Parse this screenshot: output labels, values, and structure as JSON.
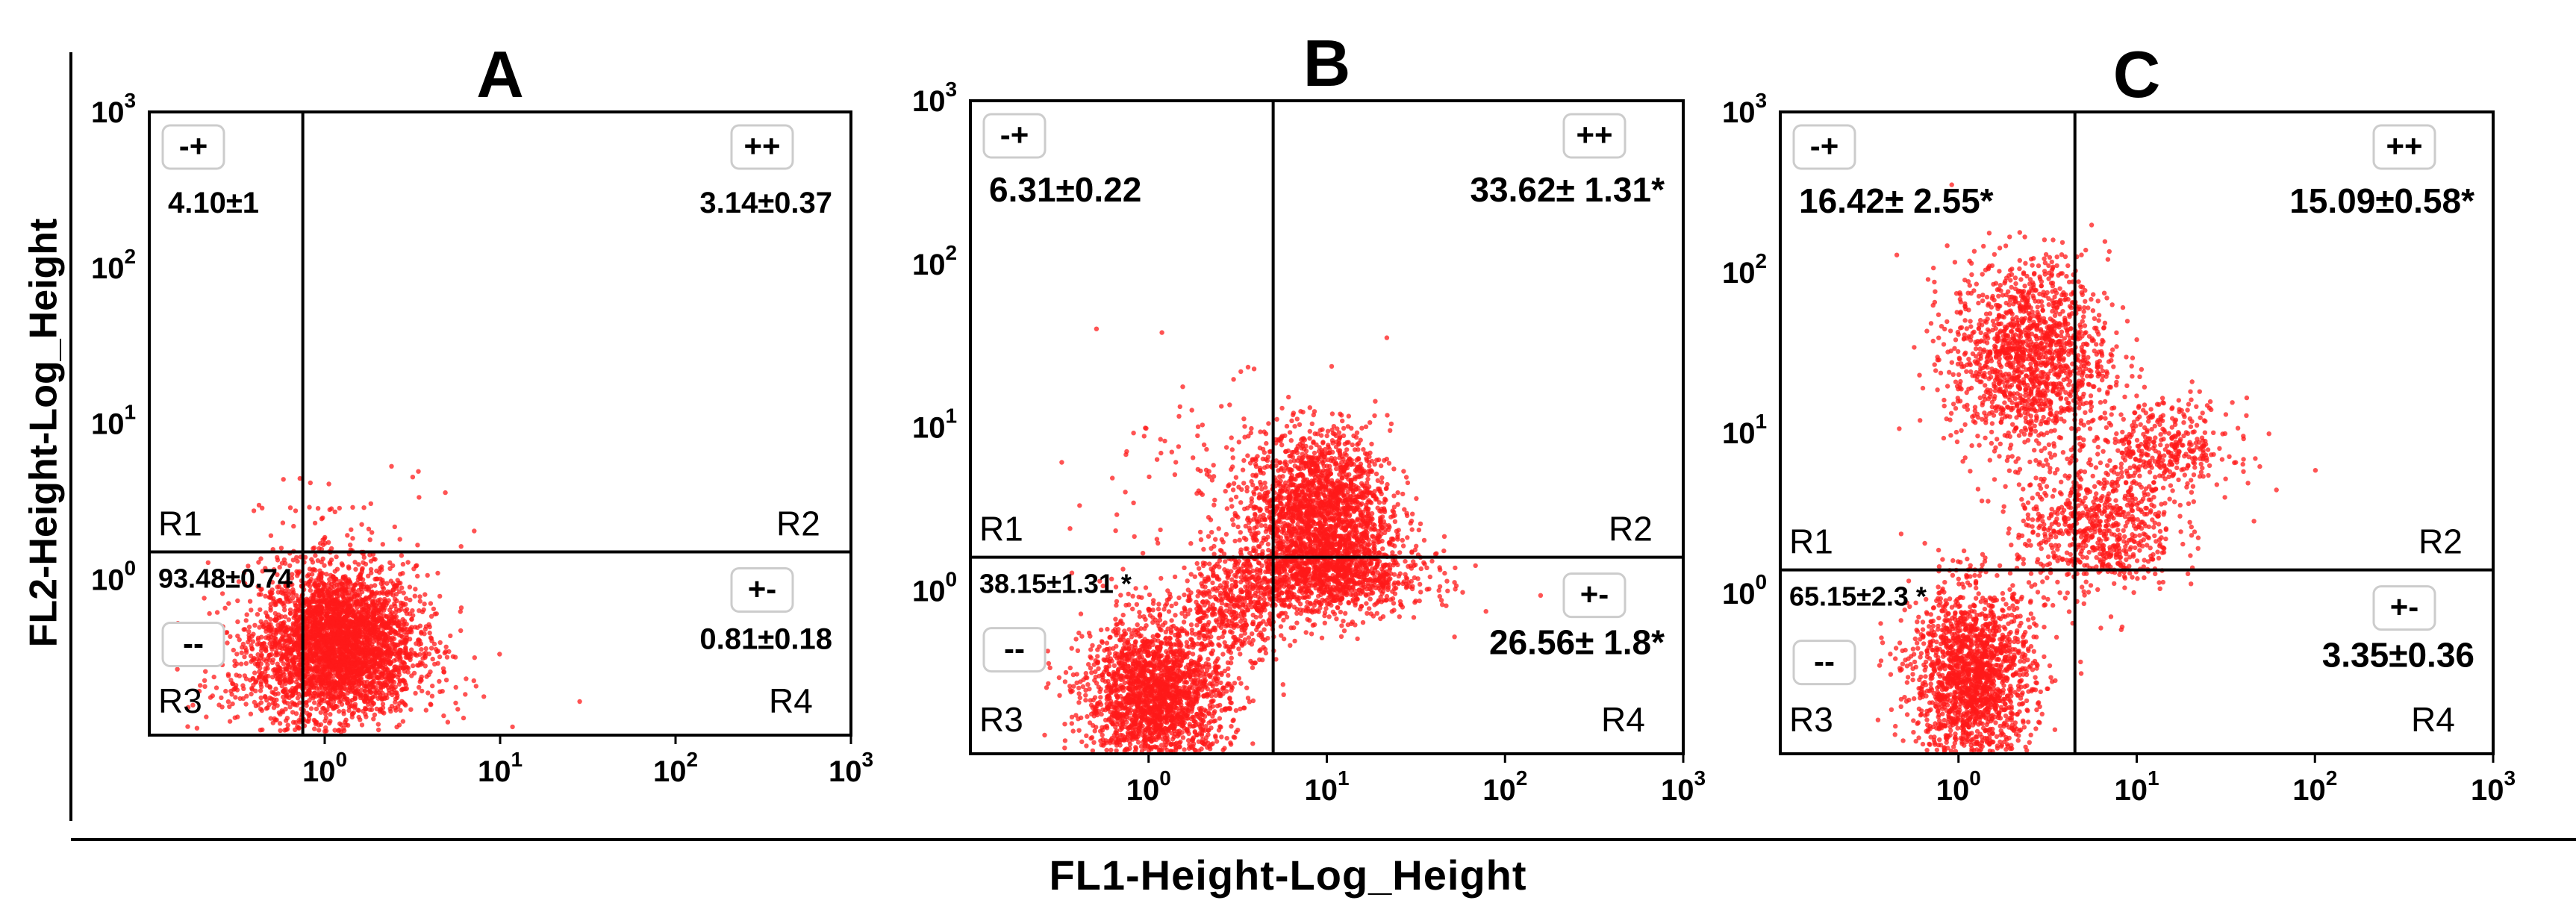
{
  "figure": {
    "ylabel": "FL2-Height-Log_Height",
    "xlabel": "FL1-Height-Log_Height"
  },
  "colors": {
    "dots": "#ff1a1a",
    "axes": "#000000"
  },
  "chart_data": [
    {
      "type": "scatter",
      "title": "A",
      "xscale": "log",
      "yscale": "log",
      "xlim": [
        0.1,
        1000
      ],
      "ylim": [
        0.1,
        1000
      ],
      "x_ticks": [
        "10^0",
        "10^1",
        "10^2",
        "10^3"
      ],
      "y_ticks": [
        "10^0",
        "10^1",
        "10^2",
        "10^3"
      ],
      "gate": {
        "x": 0.75,
        "y": 1.5
      },
      "regions": [
        "R1",
        "R2",
        "R3",
        "R4"
      ],
      "quadrants": [
        {
          "region": "R1",
          "sign": "-+",
          "value": "4.10±1"
        },
        {
          "region": "R2",
          "sign": "++",
          "value": "3.14±0.37"
        },
        {
          "region": "R3",
          "sign": "--",
          "value": "93.48±0.74"
        },
        {
          "region": "R4",
          "sign": "+-",
          "value": "0.81±0.18"
        }
      ],
      "clusters": [
        {
          "x": 1.2,
          "y": 0.4,
          "sx": 0.22,
          "sy": 0.24,
          "n": 3000
        },
        {
          "x": 0.9,
          "y": 0.25,
          "sx": 0.35,
          "sy": 0.2,
          "n": 600
        },
        {
          "x": 1.5,
          "y": 2.0,
          "sx": 0.35,
          "sy": 0.2,
          "n": 60
        }
      ]
    },
    {
      "type": "scatter",
      "title": "B",
      "xscale": "log",
      "yscale": "log",
      "xlim": [
        0.1,
        1000
      ],
      "ylim": [
        0.1,
        1000
      ],
      "x_ticks": [
        "10^0",
        "10^1",
        "10^2",
        "10^3"
      ],
      "y_ticks": [
        "10^0",
        "10^1",
        "10^2",
        "10^3"
      ],
      "gate": {
        "x": 5,
        "y": 1.6
      },
      "regions": [
        "R1",
        "R2",
        "R3",
        "R4"
      ],
      "quadrants": [
        {
          "region": "R1",
          "sign": "-+",
          "value": "6.31±0.22"
        },
        {
          "region": "R2",
          "sign": "++",
          "value": "33.62± 1.31*"
        },
        {
          "region": "R3",
          "sign": "--",
          "value": "38.15±1.31 *"
        },
        {
          "region": "R4",
          "sign": "+-",
          "value": "26.56± 1.8*"
        }
      ],
      "clusters": [
        {
          "x": 1.1,
          "y": 0.22,
          "sx": 0.2,
          "sy": 0.24,
          "n": 2200
        },
        {
          "x": 9,
          "y": 3.0,
          "sx": 0.2,
          "sy": 0.25,
          "n": 2000
        },
        {
          "x": 10,
          "y": 1.2,
          "sx": 0.28,
          "sy": 0.12,
          "n": 1000
        },
        {
          "x": 3,
          "y": 0.8,
          "sx": 0.15,
          "sy": 0.15,
          "n": 400
        },
        {
          "x": 2,
          "y": 4,
          "sx": 0.4,
          "sy": 0.35,
          "n": 120
        }
      ]
    },
    {
      "type": "scatter",
      "title": "C",
      "xscale": "log",
      "yscale": "log",
      "xlim": [
        0.1,
        1000
      ],
      "ylim": [
        0.1,
        1000
      ],
      "x_ticks": [
        "10^0",
        "10^1",
        "10^2",
        "10^3"
      ],
      "y_ticks": [
        "10^0",
        "10^1",
        "10^2",
        "10^3"
      ],
      "gate": {
        "x": 4.5,
        "y": 1.4
      },
      "regions": [
        "R1",
        "R2",
        "R3",
        "R4"
      ],
      "quadrants": [
        {
          "region": "R1",
          "sign": "-+",
          "value": "16.42± 2.55*"
        },
        {
          "region": "R2",
          "sign": "++",
          "value": "15.09±0.58*"
        },
        {
          "region": "R3",
          "sign": "--",
          "value": "65.15±2.3 *"
        },
        {
          "region": "R4",
          "sign": "+-",
          "value": "3.35±0.36"
        }
      ],
      "clusters": [
        {
          "x": 1.2,
          "y": 0.3,
          "sx": 0.17,
          "sy": 0.28,
          "n": 1800
        },
        {
          "x": 2.5,
          "y": 30,
          "sx": 0.22,
          "sy": 0.3,
          "n": 1500
        },
        {
          "x": 6,
          "y": 2.5,
          "sx": 0.22,
          "sy": 0.2,
          "n": 700
        },
        {
          "x": 14,
          "y": 8,
          "sx": 0.2,
          "sy": 0.15,
          "n": 400
        }
      ]
    }
  ]
}
